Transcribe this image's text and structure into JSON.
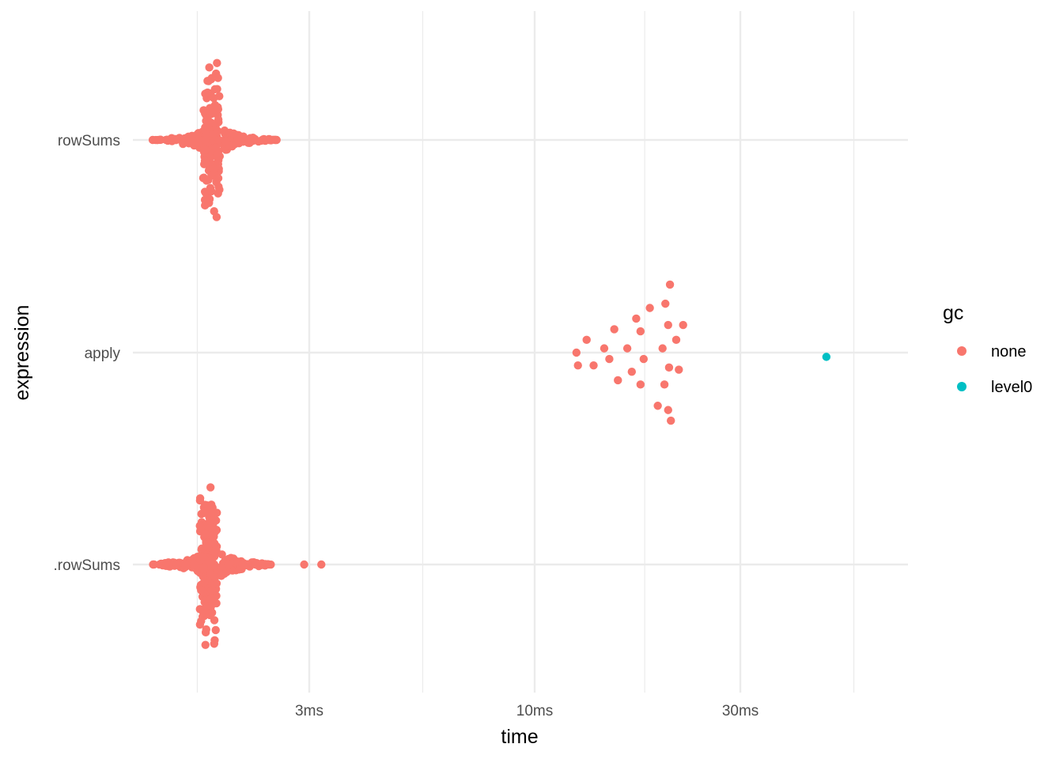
{
  "chart_data": {
    "type": "scatter",
    "style": "beeswarm",
    "xlabel": "time",
    "ylabel": "expression",
    "x_scale": "log10",
    "x_unit": "ms",
    "xlim": [
      1.2,
      55
    ],
    "x_ticks": [
      {
        "value": 3,
        "label": "3ms"
      },
      {
        "value": 10,
        "label": "10ms"
      },
      {
        "value": 30,
        "label": "30ms"
      }
    ],
    "x_minor_ticks": [
      1.65,
      5.5,
      18,
      55
    ],
    "categories": [
      "rowSums",
      "apply",
      ".rowSums"
    ],
    "grid": true,
    "legend": {
      "title": "gc",
      "position": "right",
      "entries": [
        {
          "name": "none",
          "color": "#F8766D"
        },
        {
          "name": "level0",
          "color": "#00BFC4"
        }
      ]
    },
    "series": [
      {
        "name": "none",
        "color": "#F8766D",
        "points": [
          {
            "category": "rowSums",
            "x": 1.3,
            "y_offset": 0
          },
          {
            "category": "rowSums",
            "x": 1.45,
            "y_offset": 0
          },
          {
            "category": "rowSums",
            "x": 1.6,
            "y_offset": 0
          },
          {
            "category": "rowSums",
            "x": 1.72,
            "y_offset": 0
          },
          {
            "category": "rowSums",
            "x": 1.85,
            "y_offset": 0
          },
          {
            "category": "rowSums",
            "x": 2.05,
            "y_offset": 0
          },
          {
            "category": "rowSums",
            "x": 2.35,
            "y_offset": 0
          },
          {
            "category": "rowSums",
            "x": 2.52,
            "y_offset": 0
          },
          {
            "category": "apply",
            "x": 12.5,
            "y_offset": 0.0
          },
          {
            "category": "apply",
            "x": 12.6,
            "y_offset": -0.06
          },
          {
            "category": "apply",
            "x": 13.2,
            "y_offset": 0.06
          },
          {
            "category": "apply",
            "x": 13.7,
            "y_offset": -0.06
          },
          {
            "category": "apply",
            "x": 14.5,
            "y_offset": 0.02
          },
          {
            "category": "apply",
            "x": 14.9,
            "y_offset": -0.03
          },
          {
            "category": "apply",
            "x": 15.3,
            "y_offset": 0.11
          },
          {
            "category": "apply",
            "x": 15.6,
            "y_offset": -0.13
          },
          {
            "category": "apply",
            "x": 16.4,
            "y_offset": 0.02
          },
          {
            "category": "apply",
            "x": 16.8,
            "y_offset": -0.09
          },
          {
            "category": "apply",
            "x": 17.2,
            "y_offset": 0.16
          },
          {
            "category": "apply",
            "x": 17.6,
            "y_offset": 0.1
          },
          {
            "category": "apply",
            "x": 17.6,
            "y_offset": -0.15
          },
          {
            "category": "apply",
            "x": 17.9,
            "y_offset": -0.03
          },
          {
            "category": "apply",
            "x": 18.5,
            "y_offset": 0.21
          },
          {
            "category": "apply",
            "x": 19.3,
            "y_offset": -0.25
          },
          {
            "category": "apply",
            "x": 19.8,
            "y_offset": 0.02
          },
          {
            "category": "apply",
            "x": 20.1,
            "y_offset": 0.23
          },
          {
            "category": "apply",
            "x": 20.0,
            "y_offset": -0.15
          },
          {
            "category": "apply",
            "x": 20.4,
            "y_offset": 0.13
          },
          {
            "category": "apply",
            "x": 20.5,
            "y_offset": -0.07
          },
          {
            "category": "apply",
            "x": 20.6,
            "y_offset": 0.32
          },
          {
            "category": "apply",
            "x": 20.4,
            "y_offset": -0.27
          },
          {
            "category": "apply",
            "x": 20.7,
            "y_offset": -0.32
          },
          {
            "category": "apply",
            "x": 21.3,
            "y_offset": 0.06
          },
          {
            "category": "apply",
            "x": 21.6,
            "y_offset": -0.08
          },
          {
            "category": "apply",
            "x": 22.1,
            "y_offset": 0.13
          },
          {
            "category": ".rowSums",
            "x": 1.48,
            "y_offset": 0
          },
          {
            "category": ".rowSums",
            "x": 1.55,
            "y_offset": 0
          },
          {
            "category": ".rowSums",
            "x": 1.62,
            "y_offset": 0
          },
          {
            "category": ".rowSums",
            "x": 1.95,
            "y_offset": 0
          },
          {
            "category": ".rowSums",
            "x": 2.1,
            "y_offset": 0
          },
          {
            "category": ".rowSums",
            "x": 2.25,
            "y_offset": 0
          },
          {
            "category": ".rowSums",
            "x": 2.42,
            "y_offset": 0
          },
          {
            "category": ".rowSums",
            "x": 2.92,
            "y_offset": 0
          },
          {
            "category": ".rowSums",
            "x": 3.2,
            "y_offset": 0
          }
        ],
        "swarms": [
          {
            "category": "rowSums",
            "x_center": 1.78,
            "x_spread": 0.5,
            "n": 260,
            "half_height": 0.4
          },
          {
            "category": ".rowSums",
            "x_center": 1.75,
            "x_spread": 0.45,
            "n": 320,
            "half_height": 0.4
          }
        ]
      },
      {
        "name": "level0",
        "color": "#00BFC4",
        "points": [
          {
            "category": "apply",
            "x": 47.5,
            "y_offset": -0.02
          }
        ]
      }
    ]
  }
}
